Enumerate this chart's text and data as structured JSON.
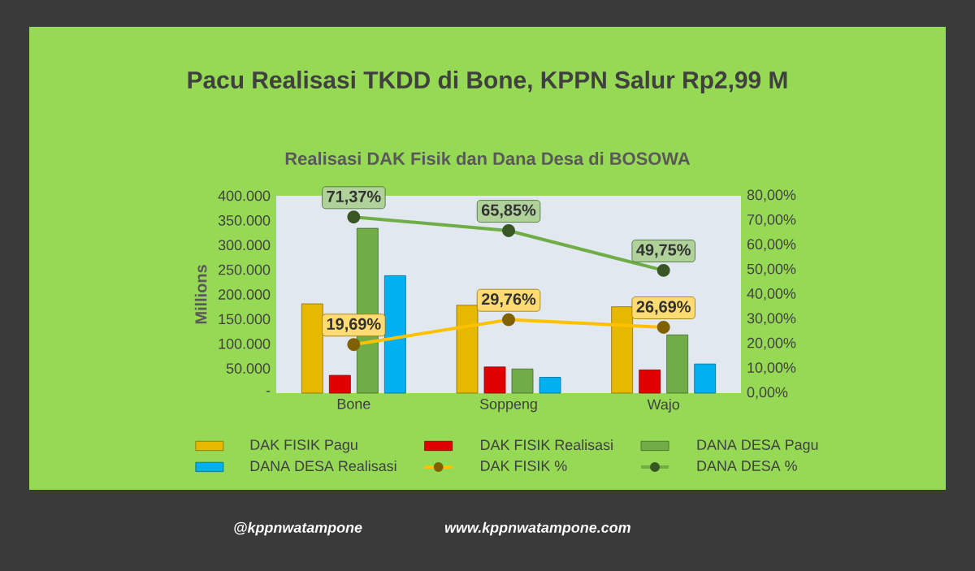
{
  "chart_data": {
    "type": "bar",
    "title": "Pacu Realisasi TKDD di Bone, KPPN Salur Rp2,99 M",
    "subtitle": "Realisasi DAK Fisik dan Dana Desa di BOSOWA",
    "ylabel": "Millions",
    "categories": [
      "Bone",
      "Soppeng",
      "Wajo"
    ],
    "series": [
      {
        "name": "DAK FISIK Pagu",
        "color": "#e6b800",
        "values": [
          181000,
          178000,
          175000
        ]
      },
      {
        "name": "DAK FISIK Realisasi",
        "color": "#e00000",
        "values": [
          36000,
          53000,
          47000
        ]
      },
      {
        "name": "DANA DESA Pagu",
        "color": "#70ad47",
        "values": [
          334000,
          49000,
          118000
        ]
      },
      {
        "name": "DANA DESA Realisasi",
        "color": "#00b0f0",
        "values": [
          238000,
          32000,
          59000
        ]
      },
      {
        "name": "DAK FISIK %",
        "type": "line",
        "axis": "y2",
        "color": "#ffc000",
        "values": [
          19.69,
          29.76,
          26.69
        ],
        "value_labels": [
          "19,69%",
          "29,76%",
          "26,69%"
        ]
      },
      {
        "name": "DANA DESA %",
        "type": "line",
        "axis": "y2",
        "color": "#70ad47",
        "values": [
          71.37,
          65.85,
          49.75
        ],
        "value_labels": [
          "71,37%",
          "65,85%",
          "49,75%"
        ]
      }
    ],
    "ylim": [
      0,
      400000
    ],
    "yticks": [
      {
        "value": 0,
        "label": "-"
      },
      {
        "value": 50000,
        "label": "50.000"
      },
      {
        "value": 100000,
        "label": "100.000"
      },
      {
        "value": 150000,
        "label": "150.000"
      },
      {
        "value": 200000,
        "label": "200.000"
      },
      {
        "value": 250000,
        "label": "250.000"
      },
      {
        "value": 300000,
        "label": "300.000"
      },
      {
        "value": 350000,
        "label": "350.000"
      },
      {
        "value": 400000,
        "label": "400.000"
      }
    ],
    "y2lim": [
      0,
      80
    ],
    "y2ticks": [
      {
        "value": 0,
        "label": "0,00%"
      },
      {
        "value": 10,
        "label": "10,00%"
      },
      {
        "value": 20,
        "label": "20,00%"
      },
      {
        "value": 30,
        "label": "30,00%"
      },
      {
        "value": 40,
        "label": "40,00%"
      },
      {
        "value": 50,
        "label": "50,00%"
      },
      {
        "value": 60,
        "label": "60,00%"
      },
      {
        "value": 70,
        "label": "70,00%"
      },
      {
        "value": 80,
        "label": "80,00%"
      }
    ],
    "marker": "circle",
    "legend": "bottom",
    "grid": false,
    "annotations": [
      "@kppnwatampone",
      "www.kppnwatampone.com"
    ]
  }
}
